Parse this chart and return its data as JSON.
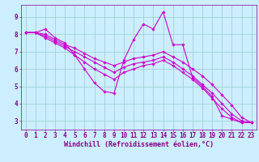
{
  "background_color": "#cceeff",
  "plot_bg_color": "#cceeff",
  "line_color": "#cc00cc",
  "grid_color": "#99cccc",
  "xlabel": "Windchill (Refroidissement éolien,°C)",
  "xlim": [
    -0.5,
    23.5
  ],
  "ylim": [
    2.5,
    9.7
  ],
  "yticks": [
    3,
    4,
    5,
    6,
    7,
    8,
    9
  ],
  "xticks": [
    0,
    1,
    2,
    3,
    4,
    5,
    6,
    7,
    8,
    9,
    10,
    11,
    12,
    13,
    14,
    15,
    16,
    17,
    18,
    19,
    20,
    21,
    22,
    23
  ],
  "series": [
    {
      "x": [
        0,
        1,
        2,
        3,
        4,
        5,
        6,
        7,
        8,
        9,
        10,
        11,
        12,
        13,
        14,
        15,
        16,
        17,
        18,
        19,
        20,
        21,
        22,
        23
      ],
      "y": [
        8.1,
        8.1,
        8.3,
        7.8,
        7.5,
        6.8,
        6.0,
        5.2,
        4.7,
        4.6,
        6.5,
        7.7,
        8.6,
        8.3,
        9.3,
        7.4,
        7.4,
        5.5,
        5.0,
        4.4,
        3.3,
        3.1,
        2.9,
        null
      ]
    },
    {
      "x": [
        0,
        1,
        2,
        3,
        4,
        5,
        6,
        7,
        8,
        9,
        10,
        11,
        12,
        13,
        14,
        15,
        16,
        17,
        18,
        19,
        20,
        21,
        22,
        23
      ],
      "y": [
        8.1,
        8.1,
        8.0,
        7.7,
        7.4,
        7.2,
        6.9,
        6.6,
        6.4,
        6.2,
        6.4,
        6.6,
        6.7,
        6.8,
        7.0,
        6.7,
        6.4,
        6.0,
        5.6,
        5.1,
        4.5,
        3.9,
        3.2,
        2.9
      ]
    },
    {
      "x": [
        0,
        1,
        2,
        3,
        4,
        5,
        6,
        7,
        8,
        9,
        10,
        11,
        12,
        13,
        14,
        15,
        16,
        17,
        18,
        19,
        20,
        21,
        22,
        23
      ],
      "y": [
        8.1,
        8.1,
        7.9,
        7.6,
        7.3,
        7.0,
        6.7,
        6.4,
        6.1,
        5.8,
        6.1,
        6.3,
        6.4,
        6.5,
        6.7,
        6.4,
        6.0,
        5.6,
        5.1,
        4.6,
        4.0,
        3.4,
        3.0,
        2.9
      ]
    },
    {
      "x": [
        0,
        1,
        2,
        3,
        4,
        5,
        6,
        7,
        8,
        9,
        10,
        11,
        12,
        13,
        14,
        15,
        16,
        17,
        18,
        19,
        20,
        21,
        22,
        23
      ],
      "y": [
        8.1,
        8.1,
        7.8,
        7.5,
        7.2,
        6.8,
        6.4,
        6.0,
        5.7,
        5.4,
        5.8,
        6.0,
        6.2,
        6.3,
        6.5,
        6.2,
        5.8,
        5.4,
        4.9,
        4.3,
        3.7,
        3.2,
        2.9,
        2.9
      ]
    }
  ],
  "xlabel_color": "#880088",
  "tick_color": "#880088",
  "spine_color": "#880088",
  "xlabel_fontsize": 6.0,
  "tick_fontsize": 5.5,
  "marker_size": 1.8,
  "line_width": 0.8
}
